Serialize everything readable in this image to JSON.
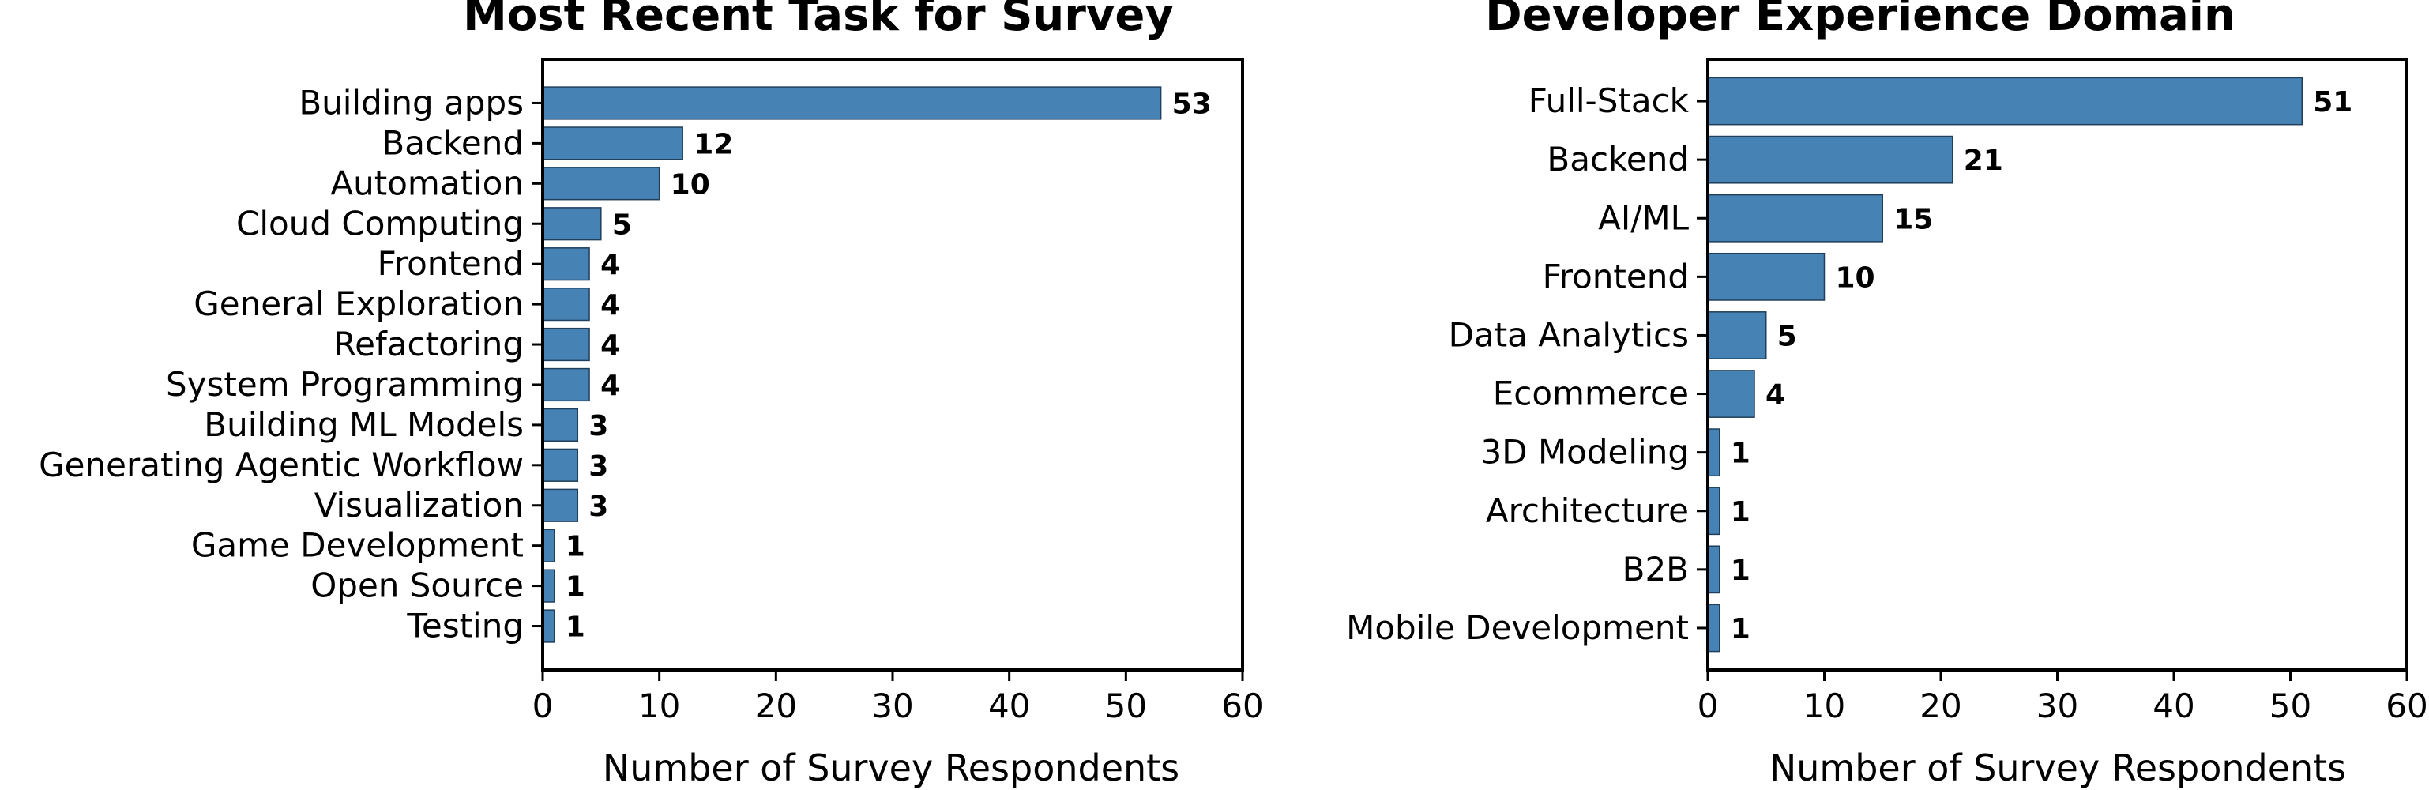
{
  "chart_data": [
    {
      "type": "bar",
      "orientation": "horizontal",
      "title": "Most Recent Task for Survey",
      "xlabel": "Number of Survey Respondents",
      "ylabel": "",
      "xlim": [
        0,
        60
      ],
      "xticks": [
        0,
        10,
        20,
        30,
        40,
        50,
        60
      ],
      "grid": false,
      "color": "#4682b4",
      "categories": [
        "Building apps",
        "Backend",
        "Automation",
        "Cloud Computing",
        "Frontend",
        "General Exploration",
        "Refactoring",
        "System Programming",
        "Building ML Models",
        "Generating Agentic Workflow",
        "Visualization",
        "Game Development",
        "Open Source",
        "Testing"
      ],
      "values": [
        53,
        12,
        10,
        5,
        4,
        4,
        4,
        4,
        3,
        3,
        3,
        1,
        1,
        1
      ]
    },
    {
      "type": "bar",
      "orientation": "horizontal",
      "title": "Developer Experience Domain",
      "xlabel": "Number of Survey Respondents",
      "ylabel": "",
      "xlim": [
        0,
        60
      ],
      "xticks": [
        0,
        10,
        20,
        30,
        40,
        50,
        60
      ],
      "grid": false,
      "color": "#4682b4",
      "categories": [
        "Full-Stack",
        "Backend",
        "AI/ML",
        "Frontend",
        "Data Analytics",
        "Ecommerce",
        "3D Modeling",
        "Architecture",
        "B2B",
        "Mobile Development"
      ],
      "values": [
        51,
        21,
        15,
        10,
        5,
        4,
        1,
        1,
        1,
        1
      ]
    }
  ]
}
